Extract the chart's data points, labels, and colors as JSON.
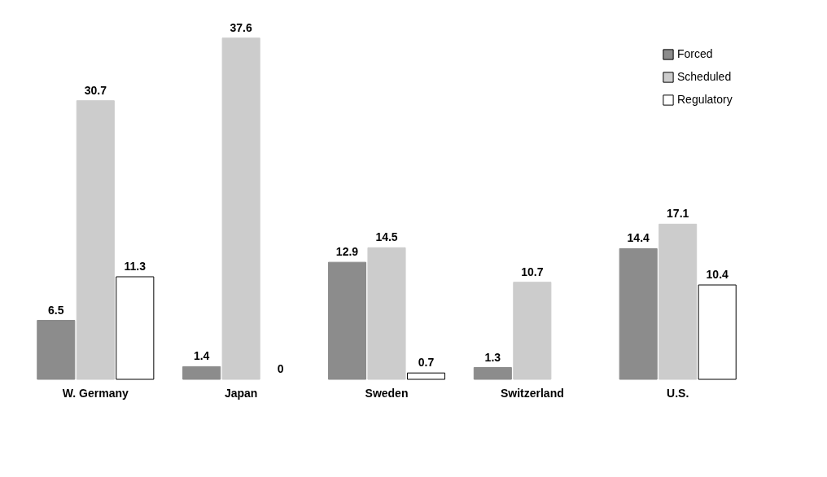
{
  "chart_data": {
    "type": "bar",
    "categories": [
      "W. Germany",
      "Japan",
      "Sweden",
      "Switzerland",
      "U.S."
    ],
    "series": [
      {
        "name": "Forced",
        "color": "#8c8c8c",
        "values": [
          6.5,
          1.4,
          12.9,
          1.3,
          14.4
        ]
      },
      {
        "name": "Scheduled",
        "color": "#cccccc",
        "values": [
          30.7,
          37.6,
          14.5,
          10.7,
          17.1
        ]
      },
      {
        "name": "Regulatory",
        "color": "#ffffff",
        "values": [
          11.3,
          0,
          0.7,
          null,
          10.4
        ]
      }
    ],
    "data_labels": true,
    "legend": "top right",
    "grid": false
  }
}
